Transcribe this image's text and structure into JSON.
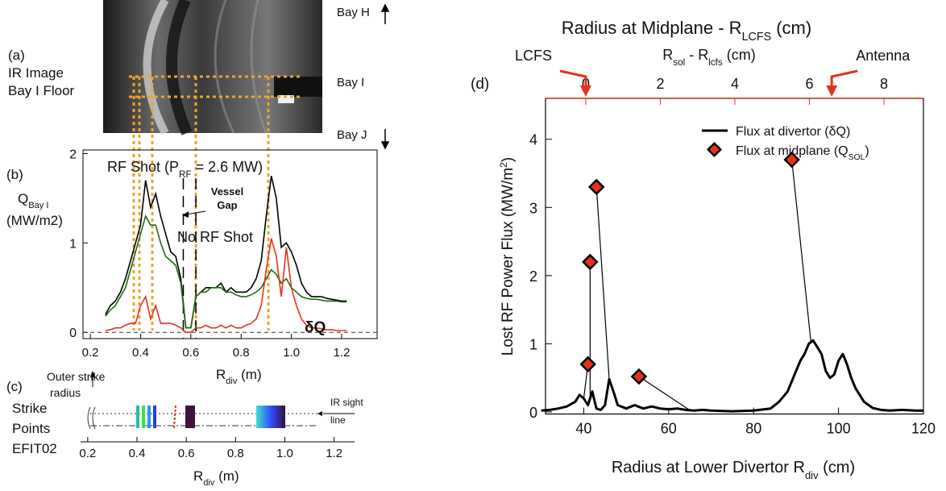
{
  "chart_data": [
    {
      "type": "image",
      "panel": "(a)",
      "caption": [
        "IR Image",
        "Bay I Floor"
      ],
      "bays": [
        "Bay H",
        "Bay I",
        "Bay J"
      ]
    },
    {
      "type": "line",
      "panel": "(b)",
      "title": [
        "RF Shot (P",
        "RF",
        " = 2.6 MW)"
      ],
      "ylabel": [
        "Q",
        "Bay I"
      ],
      "ylabel_unit": "(MW/m2)",
      "xlabel": [
        "R",
        "div",
        " (m)"
      ],
      "annotations": [
        "Vessel",
        "Gap"
      ],
      "xlim": [
        0.171,
        1.341
      ],
      "ylim": [
        -0.07,
        2.04
      ],
      "xticks": [
        0.2,
        0.4,
        0.6,
        0.8,
        {
          "value": 1,
          "label": "1.0"
        },
        1.2
      ],
      "yticks": [
        0,
        1,
        2
      ],
      "zero_line": true,
      "vlines": [
        0.57,
        0.62
      ],
      "x": [
        0.26,
        0.28,
        0.3,
        0.32,
        0.34,
        0.36,
        0.38,
        0.4,
        0.42,
        0.44,
        0.46,
        0.48,
        0.5,
        0.52,
        0.54,
        0.56,
        0.58,
        0.6,
        0.62,
        0.64,
        0.66,
        0.68,
        0.7,
        0.72,
        0.74,
        0.76,
        0.78,
        0.8,
        0.82,
        0.84,
        0.86,
        0.88,
        0.9,
        0.92,
        0.94,
        0.96,
        0.98,
        1.0,
        1.02,
        1.04,
        1.06,
        1.08,
        1.1,
        1.12,
        1.14,
        1.16,
        1.18,
        1.2,
        1.22
      ],
      "series": [
        {
          "color": "#000000",
          "values": [
            0.2,
            0.3,
            0.35,
            0.45,
            0.6,
            0.8,
            1.0,
            1.2,
            1.7,
            1.4,
            1.55,
            1.3,
            1.1,
            0.9,
            0.85,
            0.6,
            0.05,
            0.05,
            0.4,
            0.45,
            0.5,
            0.5,
            0.5,
            0.55,
            0.45,
            0.5,
            0.45,
            0.45,
            0.45,
            0.5,
            0.6,
            0.8,
            1.3,
            1.75,
            1.5,
            0.95,
            1.0,
            0.9,
            0.75,
            0.55,
            0.45,
            0.4,
            0.4,
            0.4,
            0.38,
            0.37,
            0.36,
            0.35,
            0.35
          ]
        },
        {
          "name": "No RF Shot",
          "color": "#1e6b12",
          "values": [
            0.18,
            0.25,
            0.3,
            0.4,
            0.5,
            0.7,
            0.9,
            1.1,
            1.3,
            1.2,
            1.2,
            1.0,
            0.85,
            0.8,
            0.75,
            0.55,
            0.05,
            0.05,
            0.4,
            0.45,
            0.45,
            0.5,
            0.5,
            0.5,
            0.45,
            0.45,
            0.42,
            0.4,
            0.4,
            0.42,
            0.45,
            0.5,
            0.6,
            0.7,
            0.65,
            0.55,
            0.6,
            0.5,
            0.45,
            0.4,
            0.38,
            0.37,
            0.37,
            0.36,
            0.35,
            0.35,
            0.35,
            0.34,
            0.34
          ]
        },
        {
          "name": "δQ",
          "color": "#e8311a",
          "values": [
            0.02,
            0.03,
            0.05,
            0.05,
            0.08,
            0.1,
            0.1,
            0.3,
            0.4,
            0.15,
            0.3,
            0.1,
            0.1,
            0.1,
            0.08,
            0.05,
            0,
            0,
            0.05,
            0.05,
            0.08,
            0.05,
            0.05,
            0.08,
            0.05,
            0.08,
            0.05,
            0.05,
            0.08,
            0.1,
            0.15,
            0.3,
            0.7,
            1.05,
            0.85,
            0.4,
            0.95,
            0.5,
            0.3,
            0.15,
            0.08,
            0.05,
            0.05,
            0.04,
            0.03,
            0.03,
            0.02,
            0.02,
            0.02
          ]
        }
      ]
    },
    {
      "type": "strip",
      "panel": "(c)",
      "caption": [
        "Strike",
        "Points",
        "EFIT02"
      ],
      "annotations": [
        "Outer strike",
        "radius",
        "IR sight",
        "line"
      ],
      "xlabel": [
        "R",
        "div",
        " (m)"
      ],
      "xlim": [
        0.171,
        1.283
      ],
      "xticks": [
        0.2,
        0.4,
        0.6,
        0.8,
        {
          "value": 1,
          "label": "1.0"
        },
        1.2
      ]
    },
    {
      "type": "line_scatter",
      "panel": "(d)",
      "x2label": [
        "Radius at Midplane - R",
        "LCFS",
        " (cm)"
      ],
      "x2sublabel": [
        "R",
        "sol",
        " - R",
        "lcfs",
        " (cm)"
      ],
      "x2annotations": [
        {
          "text": "LCFS",
          "x": 0
        },
        {
          "text": "Antenna",
          "x": 6.6
        }
      ],
      "xlabel": [
        "Radius at Lower Divertor R",
        "div",
        " (cm)"
      ],
      "ylabel": [
        "Lost RF Power Flux  (MW/m",
        "2",
        ")"
      ],
      "xlim": [
        31,
        120
      ],
      "x2lim": [
        -1.08,
        9.06
      ],
      "ylim": [
        -0.03,
        4.6
      ],
      "xticks": [
        40,
        60,
        80,
        100,
        120
      ],
      "x2ticks": [
        0,
        2,
        4,
        6,
        8
      ],
      "yticks": [
        0,
        1,
        2,
        3,
        4
      ],
      "x2color": "#e8311a",
      "legend": "upper right",
      "series": [
        {
          "name": [
            "Flux at divertor (δQ)"
          ],
          "color": "#000000",
          "x": [
            30,
            32,
            34,
            36,
            38,
            39,
            40,
            41,
            42,
            43,
            44,
            45,
            46,
            47,
            48,
            50,
            52,
            54,
            56,
            58,
            60,
            62,
            64,
            66,
            68,
            70,
            75,
            80,
            84,
            86,
            88,
            90,
            91,
            92,
            93,
            94,
            95,
            96,
            97,
            98,
            99,
            100,
            101,
            102,
            103,
            104,
            106,
            108,
            110,
            112,
            115,
            118,
            120
          ],
          "values": [
            0.02,
            0.03,
            0.05,
            0.08,
            0.15,
            0.25,
            0.2,
            0.1,
            0.3,
            0.05,
            0.03,
            0.1,
            0.48,
            0.3,
            0.1,
            0.05,
            0.1,
            0.05,
            0.08,
            0.05,
            0.04,
            0.05,
            0.03,
            0.02,
            0.03,
            0.02,
            0.01,
            0.02,
            0.05,
            0.15,
            0.3,
            0.6,
            0.75,
            0.85,
            1.0,
            1.05,
            0.95,
            0.85,
            0.6,
            0.5,
            0.55,
            0.75,
            0.85,
            0.7,
            0.5,
            0.35,
            0.15,
            0.06,
            0.03,
            0.02,
            0.03,
            0.02,
            0.02
          ]
        },
        {
          "name": [
            "Flux at midplane (Q",
            "SOL",
            ")"
          ],
          "color": "#e8311a",
          "x": [
            41,
            41.5,
            43,
            53,
            89
          ],
          "values": [
            0.7,
            2.2,
            3.3,
            0.52,
            3.7
          ],
          "links_x": [
            40,
            41.5,
            46,
            65,
            93.5
          ]
        }
      ]
    }
  ]
}
